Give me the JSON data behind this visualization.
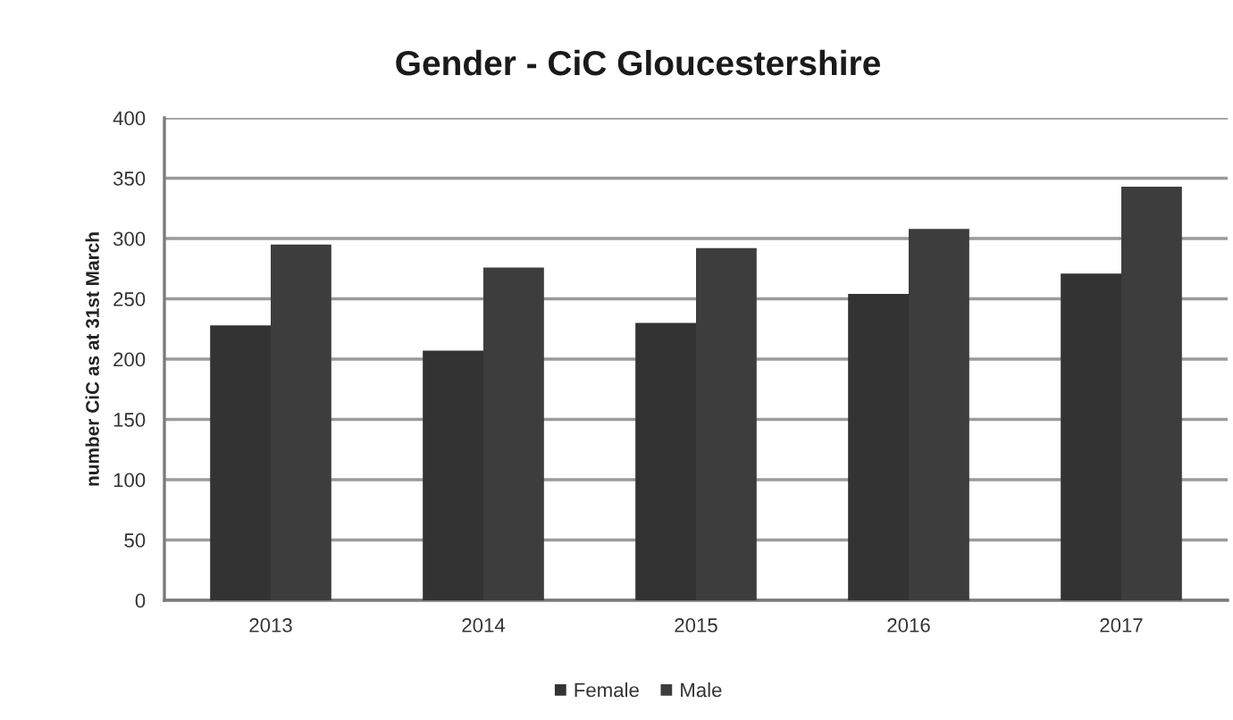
{
  "chart_data": {
    "type": "bar",
    "title": "Gender - CiC Gloucestershire",
    "ylabel": "number CiC as at 31st March",
    "categories": [
      "2013",
      "2014",
      "2015",
      "2016",
      "2017"
    ],
    "series": [
      {
        "name": "Female",
        "color": "#333333",
        "values": [
          228,
          207,
          230,
          254,
          271
        ]
      },
      {
        "name": "Male",
        "color": "#3d3d3d",
        "values": [
          295,
          276,
          292,
          308,
          343
        ]
      }
    ],
    "ylim": [
      0,
      400
    ],
    "yticks": [
      0,
      50,
      100,
      150,
      200,
      250,
      300,
      350,
      400
    ],
    "grid": "y",
    "legend": "bottom"
  }
}
